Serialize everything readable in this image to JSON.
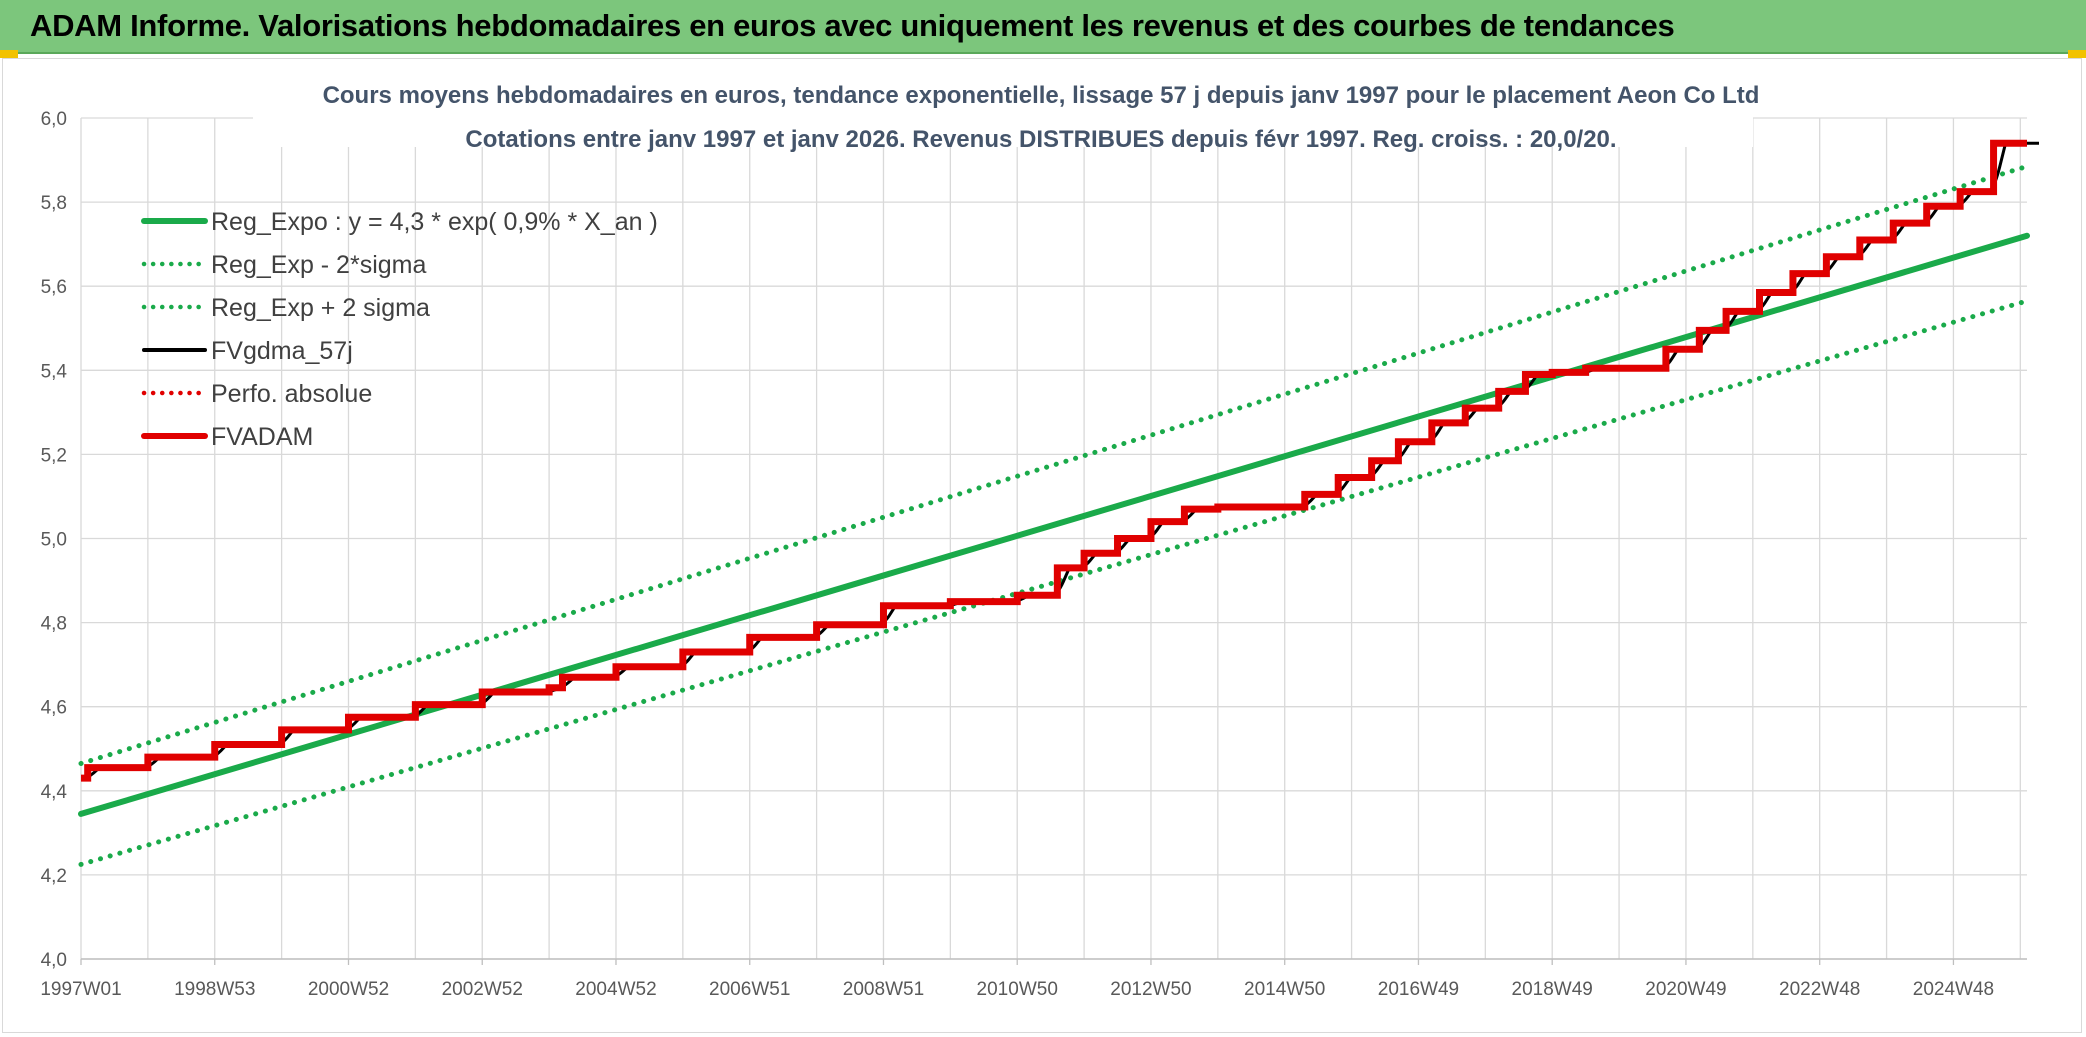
{
  "header": {
    "title": "ADAM Informe. Valorisations hebdomadaires en euros avec uniquement les revenus et des courbes de tendances"
  },
  "colors": {
    "banner": "#7cc67c",
    "green": "#1aaa4a",
    "dotted_green": "#1aaa4a",
    "black": "#000000",
    "red": "#e00000",
    "grid": "#d9d9d9",
    "axis_text": "#595959"
  },
  "chart_data": {
    "type": "line",
    "title": "Cours moyens hebdomadaires en euros, tendance exponentielle, lissage 57 j depuis janv 1997 pour le placement Aeon Co Ltd",
    "subtitle": "Cotations entre janv 1997 et janv 2026. Revenus DISTRIBUES depuis févr 1997. Reg. croiss. : 20,0/20.",
    "xlabel": "",
    "ylabel": "",
    "ylim": [
      4.0,
      6.0
    ],
    "y_ticks": [
      "4,0",
      "4,2",
      "4,4",
      "4,6",
      "4,8",
      "5,0",
      "5,2",
      "5,4",
      "5,6",
      "5,8",
      "6,0"
    ],
    "x_range_years": [
      1997.0,
      2026.1
    ],
    "x_tick_labels": [
      {
        "label": "1997W01",
        "year": 1997.0
      },
      {
        "label": "1998W53",
        "year": 1999.0
      },
      {
        "label": "2000W52",
        "year": 2001.0
      },
      {
        "label": "2002W52",
        "year": 2003.0
      },
      {
        "label": "2004W52",
        "year": 2005.0
      },
      {
        "label": "2006W51",
        "year": 2007.0
      },
      {
        "label": "2008W51",
        "year": 2009.0
      },
      {
        "label": "2010W50",
        "year": 2011.0
      },
      {
        "label": "2012W50",
        "year": 2013.0
      },
      {
        "label": "2014W50",
        "year": 2015.0
      },
      {
        "label": "2016W49",
        "year": 2017.0
      },
      {
        "label": "2018W49",
        "year": 2019.0
      },
      {
        "label": "2020W49",
        "year": 2021.0
      },
      {
        "label": "2022W48",
        "year": 2023.0
      },
      {
        "label": "2024W48",
        "year": 2025.0
      }
    ],
    "grid": true,
    "legend_position": "top-left",
    "legend": [
      {
        "label": "Reg_Expo : y = 4,3 * exp( 0,9% *  X_an )",
        "style": "solid",
        "color": "#1aaa4a"
      },
      {
        "label": "Reg_Exp - 2*sigma",
        "style": "dotted",
        "color": "#1aaa4a"
      },
      {
        "label": "Reg_Exp + 2 sigma",
        "style": "dotted",
        "color": "#1aaa4a"
      },
      {
        "label": "FVgdma_57j",
        "style": "solid-thin",
        "color": "#000000"
      },
      {
        "label": "Perfo. absolue",
        "style": "dotted",
        "color": "#e00000"
      },
      {
        "label": "FVADAM",
        "style": "solid",
        "color": "#e00000"
      }
    ],
    "series": [
      {
        "name": "Reg_Expo : y = 4,3 * exp( 0,9% *  X_an )",
        "x": [
          1997.0,
          2026.1
        ],
        "y": [
          4.345,
          5.72
        ]
      },
      {
        "name": "Reg_Exp - 2*sigma",
        "x": [
          1997.0,
          2026.1
        ],
        "y": [
          4.225,
          5.565
        ]
      },
      {
        "name": "Reg_Exp + 2 sigma",
        "x": [
          1997.0,
          2026.1
        ],
        "y": [
          4.465,
          5.885
        ]
      },
      {
        "name": "FVADAM",
        "steps": [
          [
            1997.0,
            4.43
          ],
          [
            1997.1,
            4.455
          ],
          [
            1998.0,
            4.48
          ],
          [
            1999.0,
            4.51
          ],
          [
            2000.0,
            4.545
          ],
          [
            2001.0,
            4.575
          ],
          [
            2002.0,
            4.605
          ],
          [
            2003.0,
            4.635
          ],
          [
            2004.0,
            4.645
          ],
          [
            2004.2,
            4.67
          ],
          [
            2005.0,
            4.695
          ],
          [
            2006.0,
            4.73
          ],
          [
            2007.0,
            4.765
          ],
          [
            2008.0,
            4.795
          ],
          [
            2009.0,
            4.84
          ],
          [
            2010.0,
            4.85
          ],
          [
            2011.0,
            4.865
          ],
          [
            2011.6,
            4.93
          ],
          [
            2012.0,
            4.965
          ],
          [
            2012.5,
            5.0
          ],
          [
            2013.0,
            5.04
          ],
          [
            2013.5,
            5.07
          ],
          [
            2014.0,
            5.075
          ],
          [
            2015.3,
            5.105
          ],
          [
            2015.8,
            5.145
          ],
          [
            2016.3,
            5.185
          ],
          [
            2016.7,
            5.23
          ],
          [
            2017.2,
            5.275
          ],
          [
            2017.7,
            5.31
          ],
          [
            2018.2,
            5.35
          ],
          [
            2018.6,
            5.39
          ],
          [
            2019.0,
            5.395
          ],
          [
            2019.5,
            5.405
          ],
          [
            2020.7,
            5.45
          ],
          [
            2021.2,
            5.495
          ],
          [
            2021.6,
            5.54
          ],
          [
            2022.1,
            5.585
          ],
          [
            2022.6,
            5.63
          ],
          [
            2023.1,
            5.67
          ],
          [
            2023.6,
            5.71
          ],
          [
            2024.1,
            5.75
          ],
          [
            2024.6,
            5.79
          ],
          [
            2025.1,
            5.825
          ],
          [
            2025.6,
            5.94
          ],
          [
            2026.1,
            5.94
          ]
        ]
      }
    ]
  }
}
